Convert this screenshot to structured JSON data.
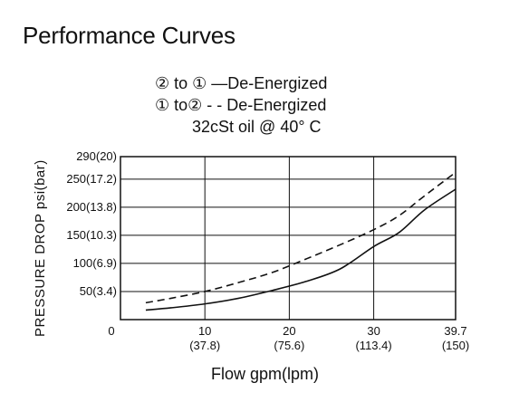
{
  "heading": "Performance Curves",
  "legend": {
    "solid_label": "② to ① —De-Energized",
    "dashed_label": "① to② - - De-Energized",
    "note": "32cSt oil @ 40° C"
  },
  "chart_data": {
    "type": "line",
    "title": "",
    "xlabel": "Flow gpm(lpm)",
    "ylabel": "PRESSURE DROP psi(bar)",
    "xlim": [
      0,
      39.7
    ],
    "ylim": [
      0,
      290
    ],
    "grid": true,
    "x_ticks": [
      {
        "value": 10,
        "label": "10",
        "sublabel": "(37.8)"
      },
      {
        "value": 20,
        "label": "20",
        "sublabel": "(75.6)"
      },
      {
        "value": 30,
        "label": "30",
        "sublabel": "(113.4)"
      },
      {
        "value": 39.7,
        "label": "39.7",
        "sublabel": "(150)"
      }
    ],
    "x_origin_label": "0",
    "y_ticks": [
      {
        "value": 50,
        "label": "50(3.4)"
      },
      {
        "value": 100,
        "label": "100(6.9)"
      },
      {
        "value": 150,
        "label": "150(10.3)"
      },
      {
        "value": 200,
        "label": "200(13.8)"
      },
      {
        "value": 250,
        "label": "250(17.2)"
      },
      {
        "value": 290,
        "label": "290(20)"
      }
    ],
    "series": [
      {
        "style": "solid",
        "x": [
          3,
          6,
          10,
          14,
          18,
          22,
          26,
          30,
          33,
          36,
          39.7
        ],
        "y": [
          17,
          21,
          28,
          38,
          52,
          68,
          90,
          130,
          155,
          195,
          232
        ]
      },
      {
        "style": "dashed",
        "x": [
          3,
          6,
          10,
          14,
          18,
          22,
          26,
          30,
          33,
          36,
          39.7
        ],
        "y": [
          30,
          38,
          50,
          66,
          84,
          108,
          133,
          160,
          185,
          220,
          262
        ]
      }
    ]
  }
}
